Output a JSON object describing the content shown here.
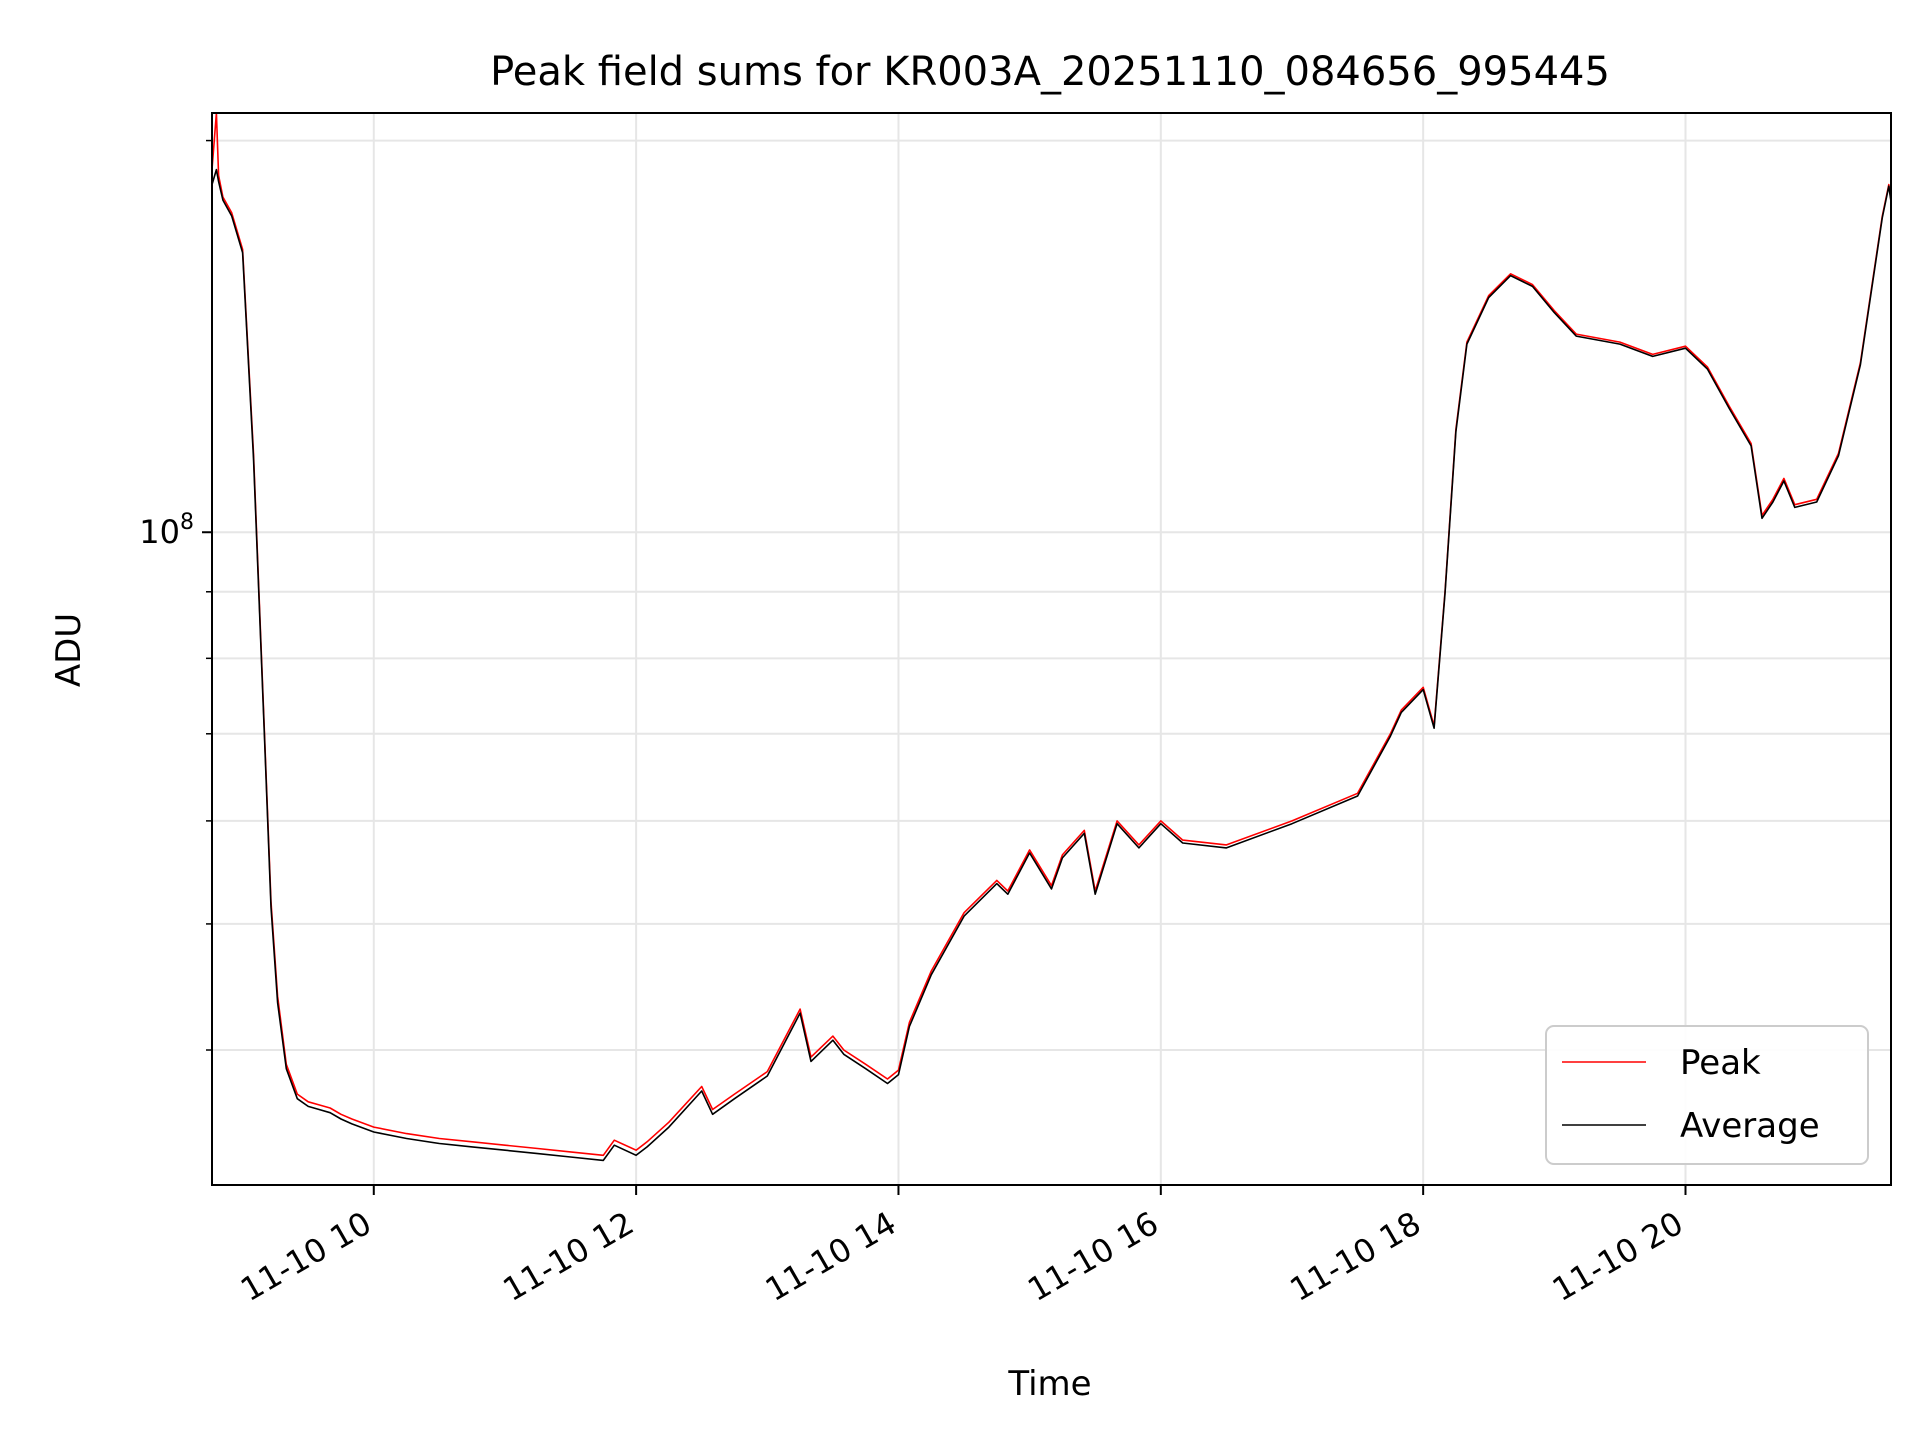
{
  "chart_data": {
    "type": "line",
    "title": "Peak field sums for KR003A_20251110_084656_995445",
    "xlabel": "Time",
    "ylabel": "ADU",
    "y_scale": "log",
    "grid": true,
    "legend_position": "lower-right",
    "xlim": [
      "2025-11-10 08:46",
      "2025-11-10 21:34"
    ],
    "ylim": [
      31500000,
      210000000
    ],
    "x_ticks": [
      {
        "value": "2025-11-10 10:00",
        "label": "11-10 10"
      },
      {
        "value": "2025-11-10 12:00",
        "label": "11-10 12"
      },
      {
        "value": "2025-11-10 14:00",
        "label": "11-10 14"
      },
      {
        "value": "2025-11-10 16:00",
        "label": "11-10 16"
      },
      {
        "value": "2025-11-10 18:00",
        "label": "11-10 18"
      },
      {
        "value": "2025-11-10 20:00",
        "label": "11-10 20"
      }
    ],
    "y_major_ticks": [
      {
        "value": 100000000,
        "base": "10",
        "exp": "8"
      }
    ],
    "y_minor_ticks": [
      40000000,
      50000000,
      60000000,
      70000000,
      80000000,
      90000000,
      200000000
    ],
    "x": [
      "08:46",
      "08:48",
      "08:49",
      "08:51",
      "08:55",
      "09:00",
      "09:05",
      "09:10",
      "09:13",
      "09:16",
      "09:20",
      "09:25",
      "09:30",
      "09:35",
      "09:40",
      "09:45",
      "09:50",
      "10:00",
      "10:15",
      "10:30",
      "10:45",
      "11:00",
      "11:15",
      "11:30",
      "11:45",
      "11:50",
      "12:00",
      "12:05",
      "12:15",
      "12:30",
      "12:35",
      "12:45",
      "13:00",
      "13:15",
      "13:20",
      "13:30",
      "13:35",
      "13:45",
      "13:55",
      "14:00",
      "14:05",
      "14:15",
      "14:30",
      "14:45",
      "14:50",
      "15:00",
      "15:10",
      "15:15",
      "15:25",
      "15:30",
      "15:40",
      "15:50",
      "16:00",
      "16:10",
      "16:30",
      "17:00",
      "17:30",
      "17:45",
      "17:50",
      "18:00",
      "18:05",
      "18:10",
      "18:15",
      "18:20",
      "18:30",
      "18:40",
      "18:50",
      "19:00",
      "19:10",
      "19:30",
      "19:45",
      "20:00",
      "20:10",
      "20:20",
      "20:30",
      "20:35",
      "20:40",
      "20:45",
      "20:50",
      "21:00",
      "21:10",
      "21:20",
      "21:30",
      "21:33",
      "21:34"
    ],
    "series": [
      {
        "name": "Peak",
        "color": "#ff0000",
        "values": [
          190000000,
          210000000,
          188000000,
          181000000,
          176000000,
          165000000,
          115000000,
          70000000,
          52000000,
          44000000,
          39000000,
          37000000,
          36500000,
          36300000,
          36100000,
          35700000,
          35400000,
          34900000,
          34500000,
          34200000,
          34000000,
          33800000,
          33600000,
          33400000,
          33200000,
          34100000,
          33500000,
          34000000,
          35200000,
          37500000,
          36000000,
          37000000,
          38500000,
          43000000,
          39500000,
          41000000,
          40000000,
          39000000,
          38000000,
          38600000,
          42000000,
          46000000,
          51000000,
          54000000,
          53000000,
          57000000,
          53500000,
          56500000,
          59000000,
          53000000,
          60000000,
          57500000,
          60000000,
          58000000,
          57500000,
          60000000,
          63000000,
          70000000,
          73000000,
          76000000,
          71000000,
          90000000,
          120000000,
          140000000,
          152000000,
          158000000,
          155000000,
          148000000,
          142000000,
          140000000,
          137000000,
          139000000,
          134000000,
          125000000,
          117000000,
          103000000,
          106000000,
          110000000,
          105000000,
          106000000,
          115000000,
          135000000,
          175000000,
          185000000,
          180000000
        ]
      },
      {
        "name": "Average",
        "color": "#000000",
        "values": [
          185000000,
          190000000,
          186000000,
          180000000,
          175000000,
          164000000,
          114000000,
          69500000,
          51500000,
          43500000,
          38700000,
          36700000,
          36200000,
          36000000,
          35800000,
          35400000,
          35100000,
          34600000,
          34200000,
          33900000,
          33700000,
          33500000,
          33300000,
          33100000,
          32900000,
          33800000,
          33200000,
          33700000,
          34900000,
          37200000,
          35700000,
          36700000,
          38200000,
          42700000,
          39200000,
          40700000,
          39700000,
          38700000,
          37700000,
          38300000,
          41700000,
          45700000,
          50700000,
          53700000,
          52700000,
          56700000,
          53200000,
          56200000,
          58700000,
          52700000,
          59700000,
          57200000,
          59700000,
          57700000,
          57200000,
          59700000,
          62700000,
          69700000,
          72700000,
          75700000,
          70700000,
          89700000,
          119500000,
          139500000,
          151500000,
          157500000,
          154500000,
          147500000,
          141500000,
          139500000,
          136500000,
          138500000,
          133500000,
          124500000,
          116500000,
          102500000,
          105500000,
          109500000,
          104500000,
          105500000,
          114500000,
          134500000,
          174500000,
          184500000,
          179500000
        ]
      }
    ]
  }
}
